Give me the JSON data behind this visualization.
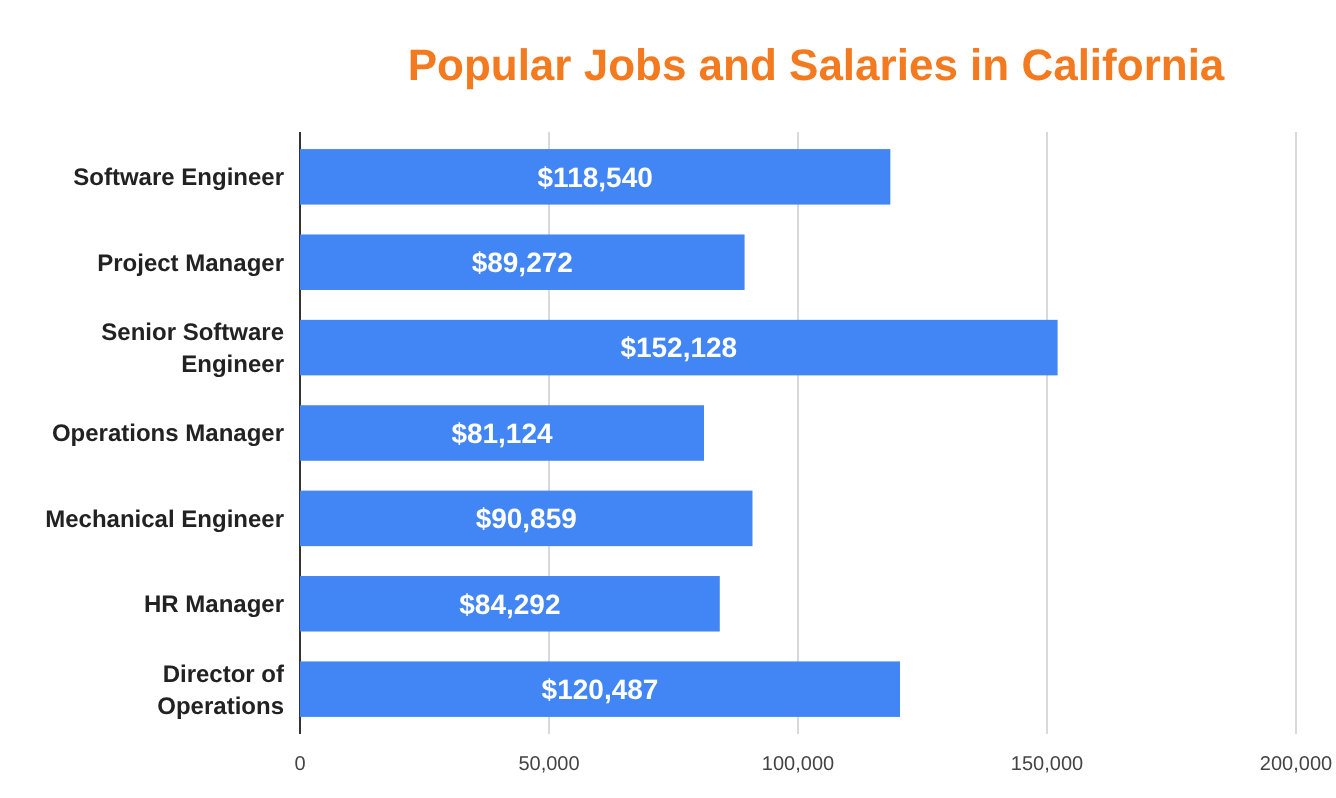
{
  "chart_data": {
    "type": "bar",
    "orientation": "horizontal",
    "title": "Popular Jobs and Salaries in California",
    "categories": [
      "Software Engineer",
      "Project Manager",
      "Senior Software Engineer",
      "Operations Manager",
      "Mechanical Engineer",
      "HR Manager",
      "Director of Operations"
    ],
    "values": [
      118540,
      89272,
      152128,
      81124,
      90859,
      84292,
      120487
    ],
    "value_labels": [
      "$118,540",
      "$89,272",
      "$152,128",
      "$81,124",
      "$90,859",
      "$84,292",
      "$120,487"
    ],
    "color": "#4285f4",
    "xlim": [
      0,
      200000
    ],
    "xticks": [
      {
        "value": 0,
        "label": "0"
      },
      {
        "value": 50000,
        "label": "50,000"
      },
      {
        "value": 100000,
        "label": "100,000"
      },
      {
        "value": 150000,
        "label": "150,000"
      },
      {
        "value": 200000,
        "label": "200,000"
      }
    ],
    "grid": "x"
  }
}
